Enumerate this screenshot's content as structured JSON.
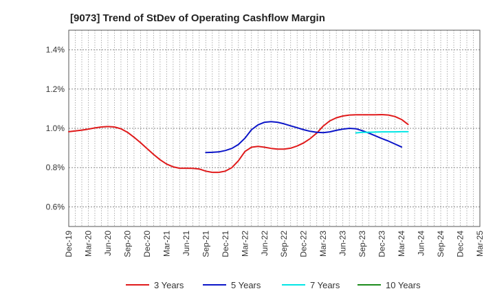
{
  "chart_data": {
    "type": "line",
    "title": "[9073]  Trend of StDev of Operating Cashflow Margin",
    "xlabel": "",
    "ylabel": "",
    "ylim": [
      0.5,
      1.5
    ],
    "y_ticks": [
      0.6,
      0.8,
      1.0,
      1.2,
      1.4
    ],
    "y_tick_labels": [
      "0.6%",
      "0.8%",
      "1.0%",
      "1.2%",
      "1.4%"
    ],
    "x_tick_labels": [
      "Dec-19",
      "Mar-20",
      "Jun-20",
      "Sep-20",
      "Dec-20",
      "Mar-21",
      "Jun-21",
      "Sep-21",
      "Dec-21",
      "Mar-22",
      "Jun-22",
      "Sep-22",
      "Dec-22",
      "Mar-23",
      "Jun-23",
      "Sep-23",
      "Dec-23",
      "Mar-24",
      "Jun-24",
      "Sep-24",
      "Dec-24",
      "Mar-25"
    ],
    "grid": true,
    "legend_position": "bottom",
    "series": [
      {
        "name": "3 Years",
        "color": "#e0191a",
        "points": [
          [
            "Dec-19",
            0.983
          ],
          [
            "Jan-20",
            0.987
          ],
          [
            "Feb-20",
            0.991
          ],
          [
            "Mar-20",
            0.996
          ],
          [
            "Apr-20",
            1.002
          ],
          [
            "May-20",
            1.007
          ],
          [
            "Jun-20",
            1.009
          ],
          [
            "Jul-20",
            1.007
          ],
          [
            "Aug-20",
            0.998
          ],
          [
            "Sep-20",
            0.98
          ],
          [
            "Oct-20",
            0.955
          ],
          [
            "Nov-20",
            0.927
          ],
          [
            "Dec-20",
            0.897
          ],
          [
            "Jan-21",
            0.867
          ],
          [
            "Feb-21",
            0.84
          ],
          [
            "Mar-21",
            0.818
          ],
          [
            "Apr-21",
            0.804
          ],
          [
            "May-21",
            0.797
          ],
          [
            "Jun-21",
            0.797
          ],
          [
            "Jul-21",
            0.796
          ],
          [
            "Aug-21",
            0.793
          ],
          [
            "Sep-21",
            0.782
          ],
          [
            "Oct-21",
            0.776
          ],
          [
            "Nov-21",
            0.776
          ],
          [
            "Dec-21",
            0.782
          ],
          [
            "Jan-22",
            0.8
          ],
          [
            "Feb-22",
            0.835
          ],
          [
            "Mar-22",
            0.882
          ],
          [
            "Apr-22",
            0.904
          ],
          [
            "May-22",
            0.908
          ],
          [
            "Jun-22",
            0.904
          ],
          [
            "Jul-22",
            0.898
          ],
          [
            "Aug-22",
            0.894
          ],
          [
            "Sep-22",
            0.894
          ],
          [
            "Oct-22",
            0.899
          ],
          [
            "Nov-22",
            0.91
          ],
          [
            "Dec-22",
            0.926
          ],
          [
            "Jan-23",
            0.948
          ],
          [
            "Feb-23",
            0.976
          ],
          [
            "Mar-23",
            1.012
          ],
          [
            "Apr-23",
            1.038
          ],
          [
            "May-23",
            1.054
          ],
          [
            "Jun-23",
            1.063
          ],
          [
            "Jul-23",
            1.068
          ],
          [
            "Aug-23",
            1.069
          ],
          [
            "Sep-23",
            1.069
          ],
          [
            "Oct-23",
            1.069
          ],
          [
            "Nov-23",
            1.069
          ],
          [
            "Dec-23",
            1.07
          ],
          [
            "Jan-24",
            1.068
          ],
          [
            "Feb-24",
            1.06
          ],
          [
            "Mar-24",
            1.045
          ],
          [
            "Apr-24",
            1.02
          ]
        ]
      },
      {
        "name": "5 Years",
        "color": "#0a14c8",
        "points": [
          [
            "Sep-21",
            0.877
          ],
          [
            "Oct-21",
            0.878
          ],
          [
            "Nov-21",
            0.88
          ],
          [
            "Dec-21",
            0.887
          ],
          [
            "Jan-22",
            0.898
          ],
          [
            "Feb-22",
            0.918
          ],
          [
            "Mar-22",
            0.95
          ],
          [
            "Apr-22",
            0.993
          ],
          [
            "May-22",
            1.018
          ],
          [
            "Jun-22",
            1.031
          ],
          [
            "Jul-22",
            1.034
          ],
          [
            "Aug-22",
            1.031
          ],
          [
            "Sep-22",
            1.023
          ],
          [
            "Oct-22",
            1.013
          ],
          [
            "Nov-22",
            1.003
          ],
          [
            "Dec-22",
            0.993
          ],
          [
            "Jan-23",
            0.985
          ],
          [
            "Feb-23",
            0.98
          ],
          [
            "Mar-23",
            0.978
          ],
          [
            "Apr-23",
            0.982
          ],
          [
            "May-23",
            0.99
          ],
          [
            "Jun-23",
            0.996
          ],
          [
            "Jul-23",
            1.0
          ],
          [
            "Aug-23",
            0.998
          ],
          [
            "Sep-23",
            0.988
          ],
          [
            "Oct-23",
            0.976
          ],
          [
            "Nov-23",
            0.962
          ],
          [
            "Dec-23",
            0.948
          ],
          [
            "Jan-24",
            0.935
          ],
          [
            "Feb-24",
            0.92
          ],
          [
            "Mar-24",
            0.905
          ]
        ]
      },
      {
        "name": "7 Years",
        "color": "#00e5e5",
        "points": [
          [
            "Aug-23",
            0.977
          ],
          [
            "Sep-23",
            0.98
          ],
          [
            "Oct-23",
            0.98
          ],
          [
            "Nov-23",
            0.981
          ],
          [
            "Dec-23",
            0.982
          ],
          [
            "Jan-24",
            0.982
          ],
          [
            "Feb-24",
            0.982
          ],
          [
            "Mar-24",
            0.983
          ],
          [
            "Apr-24",
            0.983
          ]
        ]
      },
      {
        "name": "10 Years",
        "color": "#1a8a1a",
        "points": []
      }
    ]
  }
}
